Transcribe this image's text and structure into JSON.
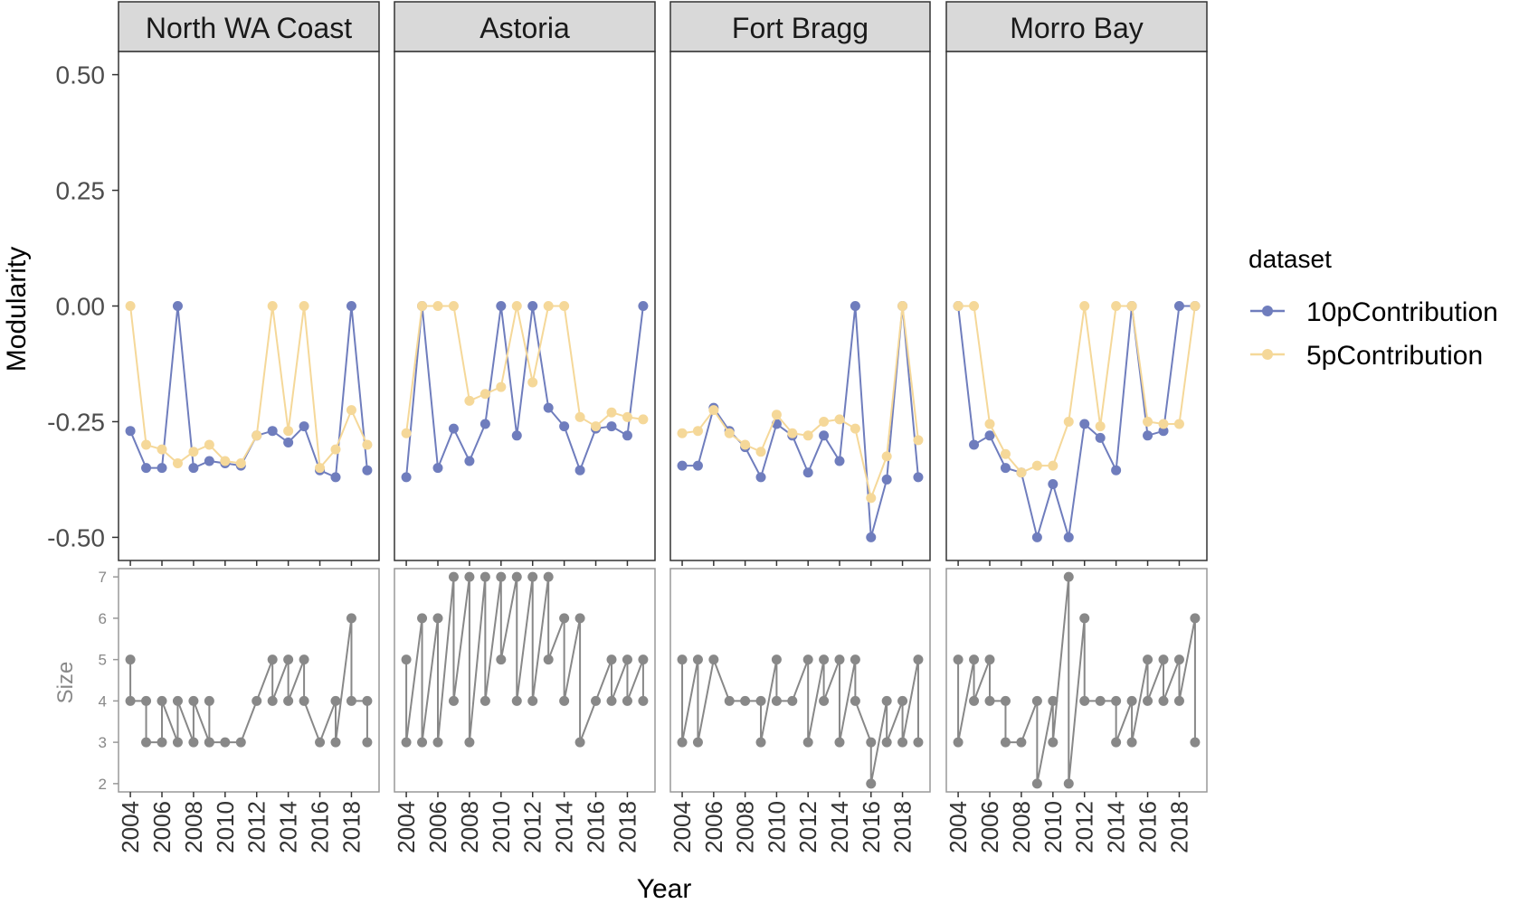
{
  "chart_data": {
    "type": "line",
    "xlabel": "Year",
    "facets": [
      "North WA Coast",
      "Astoria",
      "Fort Bragg",
      "Morro Bay"
    ],
    "x": [
      2004,
      2005,
      2006,
      2007,
      2008,
      2009,
      2010,
      2011,
      2012,
      2013,
      2014,
      2015,
      2016,
      2017,
      2018,
      2019
    ],
    "x_ticks": [
      "2004",
      "2006",
      "2008",
      "2010",
      "2012",
      "2014",
      "2016",
      "2018"
    ],
    "legend": {
      "title": "dataset",
      "position": "right",
      "entries": [
        {
          "label": "10pContribution",
          "color": "#6f7dbd"
        },
        {
          "label": "5pContribution",
          "color": "#f5d899"
        }
      ]
    },
    "modularity": {
      "ylabel": "Modularity",
      "ylim": [
        -0.55,
        0.55
      ],
      "y_ticks": [
        {
          "value": 0.5,
          "label": "0.50"
        },
        {
          "value": 0.25,
          "label": "0.25"
        },
        {
          "value": 0.0,
          "label": "0.00"
        },
        {
          "value": -0.25,
          "label": "-0.25"
        },
        {
          "value": -0.5,
          "label": "-0.50"
        }
      ],
      "series": [
        {
          "name": "10pContribution",
          "color": "#6f7dbd",
          "values": [
            [
              -0.27,
              -0.35,
              -0.35,
              0.0,
              -0.35,
              -0.335,
              -0.34,
              -0.345,
              -0.28,
              -0.27,
              -0.295,
              -0.26,
              -0.355,
              -0.37,
              0.0,
              -0.355
            ],
            [
              -0.37,
              0.0,
              -0.35,
              -0.265,
              -0.335,
              -0.255,
              0.0,
              -0.28,
              0.0,
              -0.22,
              -0.26,
              -0.355,
              -0.265,
              -0.26,
              -0.28,
              0.0
            ],
            [
              -0.345,
              -0.345,
              -0.22,
              -0.27,
              -0.305,
              -0.37,
              -0.255,
              -0.28,
              -0.36,
              -0.28,
              -0.335,
              0.0,
              -0.5,
              -0.375,
              0.0,
              -0.37
            ],
            [
              0.0,
              -0.3,
              -0.28,
              -0.35,
              -0.36,
              -0.5,
              -0.385,
              -0.5,
              -0.255,
              -0.285,
              -0.355,
              0.0,
              -0.28,
              -0.27,
              0.0,
              0.0
            ]
          ]
        },
        {
          "name": "5pContribution",
          "color": "#f5d899",
          "values": [
            [
              0.0,
              -0.3,
              -0.31,
              -0.34,
              -0.315,
              -0.3,
              -0.335,
              -0.34,
              -0.28,
              0.0,
              -0.27,
              0.0,
              -0.35,
              -0.31,
              -0.225,
              -0.3
            ],
            [
              -0.275,
              0.0,
              0.0,
              0.0,
              -0.205,
              -0.19,
              -0.175,
              0.0,
              -0.165,
              0.0,
              0.0,
              -0.24,
              -0.26,
              -0.23,
              -0.24,
              -0.245
            ],
            [
              -0.275,
              -0.27,
              -0.225,
              -0.275,
              -0.3,
              -0.315,
              -0.235,
              -0.275,
              -0.28,
              -0.25,
              -0.245,
              -0.265,
              -0.415,
              -0.325,
              0.0,
              -0.29
            ],
            [
              0.0,
              0.0,
              -0.255,
              -0.32,
              -0.36,
              -0.345,
              -0.345,
              -0.25,
              0.0,
              -0.26,
              0.0,
              0.0,
              -0.25,
              -0.255,
              -0.255,
              0.0
            ]
          ]
        }
      ]
    },
    "size": {
      "ylabel": "Size",
      "ylim": [
        1.8,
        7.2
      ],
      "y_ticks": [
        "2",
        "3",
        "4",
        "5",
        "6",
        "7"
      ],
      "color": "#888888",
      "facet_values": [
        [
          [
            2004,
            5
          ],
          [
            2004,
            4
          ],
          [
            2005,
            4
          ],
          [
            2005,
            3
          ],
          [
            2006,
            3
          ],
          [
            2006,
            4
          ],
          [
            2007,
            3
          ],
          [
            2007,
            4
          ],
          [
            2008,
            3
          ],
          [
            2008,
            4
          ],
          [
            2009,
            3
          ],
          [
            2009,
            4
          ],
          [
            2009,
            3
          ],
          [
            2010,
            3
          ],
          [
            2011,
            3
          ],
          [
            2012,
            4
          ],
          [
            2013,
            5
          ],
          [
            2013,
            4
          ],
          [
            2014,
            5
          ],
          [
            2014,
            4
          ],
          [
            2015,
            5
          ],
          [
            2015,
            4
          ],
          [
            2016,
            3
          ],
          [
            2017,
            4
          ],
          [
            2017,
            3
          ],
          [
            2018,
            6
          ],
          [
            2018,
            4
          ],
          [
            2019,
            4
          ],
          [
            2019,
            3
          ]
        ],
        [
          [
            2004,
            5
          ],
          [
            2004,
            3
          ],
          [
            2005,
            6
          ],
          [
            2005,
            3
          ],
          [
            2006,
            6
          ],
          [
            2006,
            3
          ],
          [
            2007,
            7
          ],
          [
            2007,
            4
          ],
          [
            2008,
            7
          ],
          [
            2008,
            3
          ],
          [
            2009,
            7
          ],
          [
            2009,
            4
          ],
          [
            2010,
            7
          ],
          [
            2010,
            5
          ],
          [
            2011,
            7
          ],
          [
            2011,
            4
          ],
          [
            2012,
            7
          ],
          [
            2012,
            4
          ],
          [
            2013,
            7
          ],
          [
            2013,
            5
          ],
          [
            2014,
            6
          ],
          [
            2014,
            4
          ],
          [
            2015,
            6
          ],
          [
            2015,
            3
          ],
          [
            2016,
            4
          ],
          [
            2017,
            5
          ],
          [
            2017,
            4
          ],
          [
            2018,
            5
          ],
          [
            2018,
            4
          ],
          [
            2019,
            5
          ],
          [
            2019,
            4
          ]
        ],
        [
          [
            2004,
            5
          ],
          [
            2004,
            3
          ],
          [
            2005,
            5
          ],
          [
            2005,
            3
          ],
          [
            2006,
            5
          ],
          [
            2007,
            4
          ],
          [
            2008,
            4
          ],
          [
            2009,
            4
          ],
          [
            2009,
            3
          ],
          [
            2010,
            5
          ],
          [
            2010,
            4
          ],
          [
            2011,
            4
          ],
          [
            2012,
            5
          ],
          [
            2012,
            3
          ],
          [
            2013,
            5
          ],
          [
            2013,
            4
          ],
          [
            2014,
            5
          ],
          [
            2014,
            3
          ],
          [
            2015,
            5
          ],
          [
            2015,
            4
          ],
          [
            2016,
            3
          ],
          [
            2016,
            2
          ],
          [
            2017,
            4
          ],
          [
            2017,
            3
          ],
          [
            2018,
            4
          ],
          [
            2018,
            3
          ],
          [
            2019,
            5
          ],
          [
            2019,
            3
          ]
        ],
        [
          [
            2004,
            5
          ],
          [
            2004,
            3
          ],
          [
            2005,
            5
          ],
          [
            2005,
            4
          ],
          [
            2006,
            5
          ],
          [
            2006,
            4
          ],
          [
            2007,
            4
          ],
          [
            2007,
            3
          ],
          [
            2008,
            3
          ],
          [
            2009,
            4
          ],
          [
            2009,
            2
          ],
          [
            2010,
            4
          ],
          [
            2010,
            3
          ],
          [
            2011,
            7
          ],
          [
            2011,
            2
          ],
          [
            2012,
            6
          ],
          [
            2012,
            4
          ],
          [
            2013,
            4
          ],
          [
            2014,
            4
          ],
          [
            2014,
            3
          ],
          [
            2015,
            4
          ],
          [
            2015,
            3
          ],
          [
            2016,
            5
          ],
          [
            2016,
            4
          ],
          [
            2017,
            5
          ],
          [
            2017,
            4
          ],
          [
            2018,
            5
          ],
          [
            2018,
            4
          ],
          [
            2019,
            6
          ],
          [
            2019,
            3
          ]
        ]
      ]
    }
  }
}
